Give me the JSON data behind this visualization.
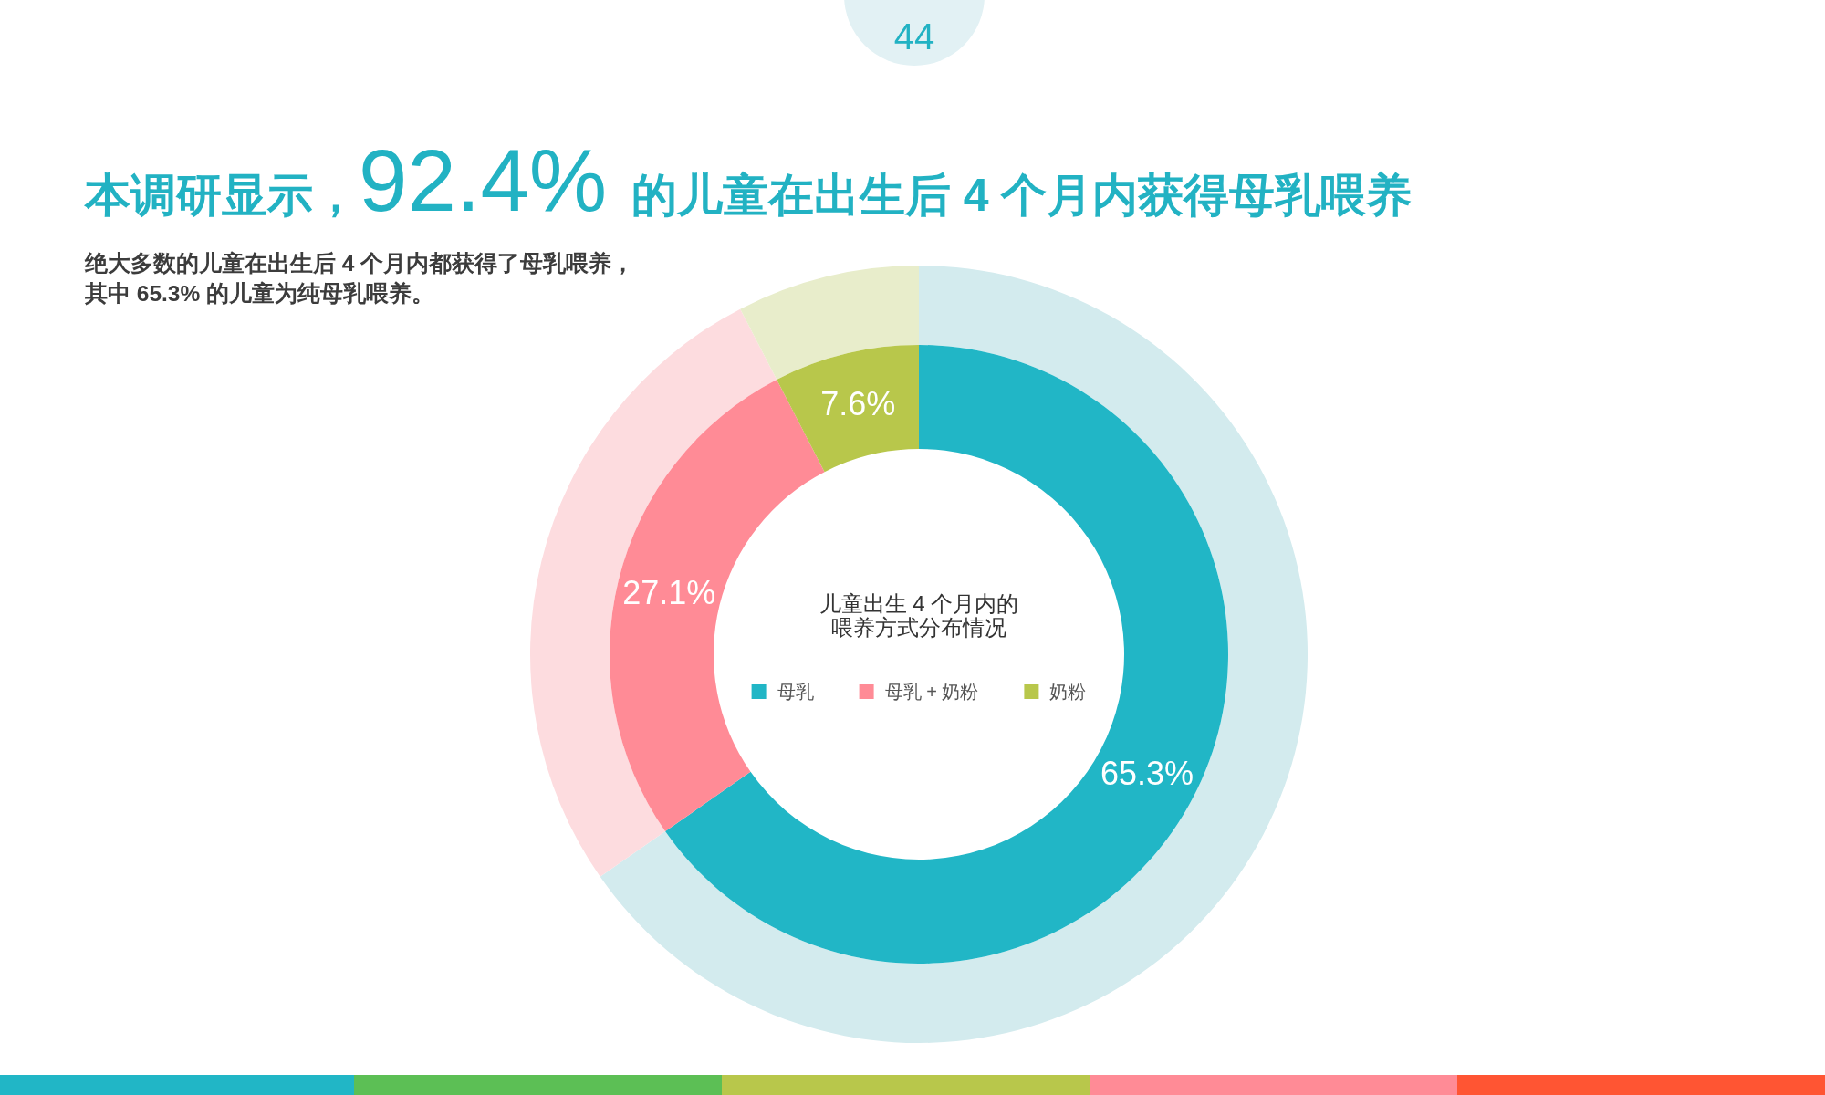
{
  "chart_data": {
    "type": "donut",
    "title": "本调研显示，92.4% 的儿童在出生后 4 个月内获得母乳喂养",
    "subtitle": "绝大多数的儿童在出生后 4 个月内都获得了母乳喂养，其中 65.3% 的儿童为纯母乳喂养。",
    "legend_title": "儿童出生 4 个月内的喂养方式分布情况",
    "annotations": [
      "44"
    ],
    "categories": [
      "母乳",
      "母乳 + 奶粉",
      "奶粉"
    ],
    "series": [
      {
        "values": [
          65.3,
          27.1,
          7.6
        ],
        "colors": [
          "#d3ebee",
          "#fddcdf",
          "#e8edcb"
        ]
      },
      {
        "values": [
          65.3,
          27.1,
          7.6
        ],
        "colors": [
          "#21b6c6",
          "#ff8b96",
          "#b8c74b"
        ],
        "value_labels": [
          "65.3%",
          "27.1%",
          "7.6%"
        ]
      }
    ],
    "legend": "center"
  }
}
